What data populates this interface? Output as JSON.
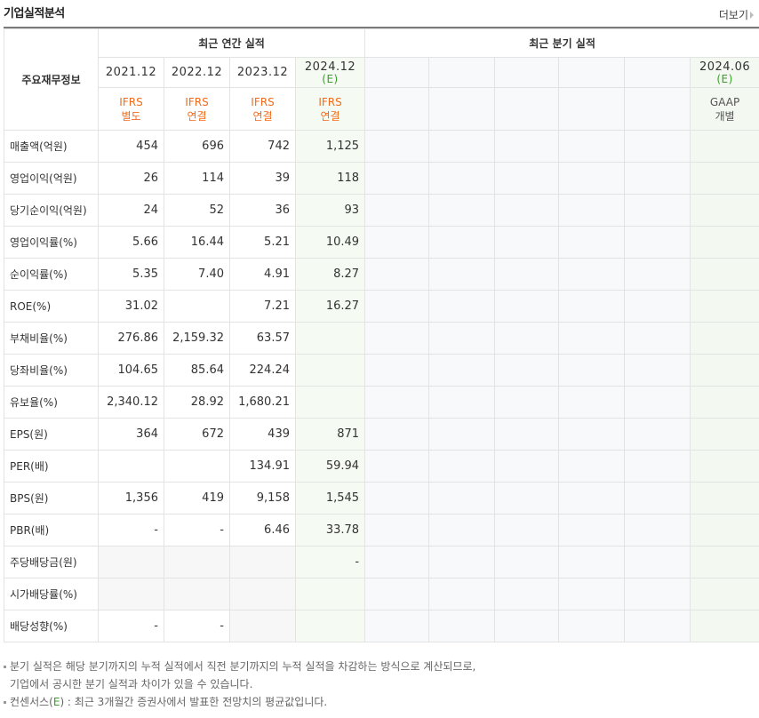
{
  "header": {
    "title": "기업실적분석",
    "more_label": "더보기"
  },
  "table": {
    "row_header_label": "주요재무정보",
    "annual_group_label": "최근 연간 실적",
    "quarter_group_label": "최근 분기 실적",
    "annual_periods": [
      {
        "year": "2021.12",
        "est": "",
        "acct1": "IFRS",
        "acct2": "별도"
      },
      {
        "year": "2022.12",
        "est": "",
        "acct1": "IFRS",
        "acct2": "연결"
      },
      {
        "year": "2023.12",
        "est": "",
        "acct1": "IFRS",
        "acct2": "연결"
      },
      {
        "year": "2024.12",
        "est": "(E)",
        "acct1": "IFRS",
        "acct2": "연결"
      }
    ],
    "quarter_last": {
      "year": "2024.06",
      "est": "(E)",
      "acct1": "GAAP",
      "acct2": "개별"
    },
    "rows": [
      {
        "label": "매출액(억원)",
        "values": [
          "454",
          "696",
          "742",
          "1,125"
        ]
      },
      {
        "label": "영업이익(억원)",
        "values": [
          "26",
          "114",
          "39",
          "118"
        ]
      },
      {
        "label": "당기순이익(억원)",
        "values": [
          "24",
          "52",
          "36",
          "93"
        ]
      },
      {
        "label": "영업이익률(%)",
        "values": [
          "5.66",
          "16.44",
          "5.21",
          "10.49"
        ]
      },
      {
        "label": "순이익률(%)",
        "values": [
          "5.35",
          "7.40",
          "4.91",
          "8.27"
        ]
      },
      {
        "label": "ROE(%)",
        "values": [
          "31.02",
          "",
          "7.21",
          "16.27"
        ]
      },
      {
        "label": "부채비율(%)",
        "values": [
          "276.86",
          "2,159.32",
          "63.57",
          ""
        ]
      },
      {
        "label": "당좌비율(%)",
        "values": [
          "104.65",
          "85.64",
          "224.24",
          ""
        ]
      },
      {
        "label": "유보율(%)",
        "values": [
          "2,340.12",
          "28.92",
          "1,680.21",
          ""
        ]
      },
      {
        "label": "EPS(원)",
        "values": [
          "364",
          "672",
          "439",
          "871"
        ]
      },
      {
        "label": "PER(배)",
        "values": [
          "",
          "",
          "134.91",
          "59.94"
        ]
      },
      {
        "label": "BPS(원)",
        "values": [
          "1,356",
          "419",
          "9,158",
          "1,545"
        ]
      },
      {
        "label": "PBR(배)",
        "values": [
          "-",
          "-",
          "6.46",
          "33.78"
        ]
      },
      {
        "label": "주당배당금(원)",
        "values": [
          "",
          "",
          "",
          "-"
        ]
      },
      {
        "label": "시가배당률(%)",
        "values": [
          "",
          "",
          "",
          ""
        ]
      },
      {
        "label": "배당성향(%)",
        "values": [
          "-",
          "-",
          "",
          ""
        ]
      }
    ]
  },
  "notes": {
    "line1": "분기 실적은 해당 분기까지의 누적 실적에서 직전 분기까지의 누적 실적을 차감하는 방식으로 계산되므로,",
    "line2": "기업에서 공시한 분기 실적과 차이가 있을 수 있습니다.",
    "line3_pre": "컨센서스(",
    "line3_e": "E",
    "line3_post": ") : 최근 3개월간 증권사에서 발표한 전망치의 평균값입니다."
  }
}
